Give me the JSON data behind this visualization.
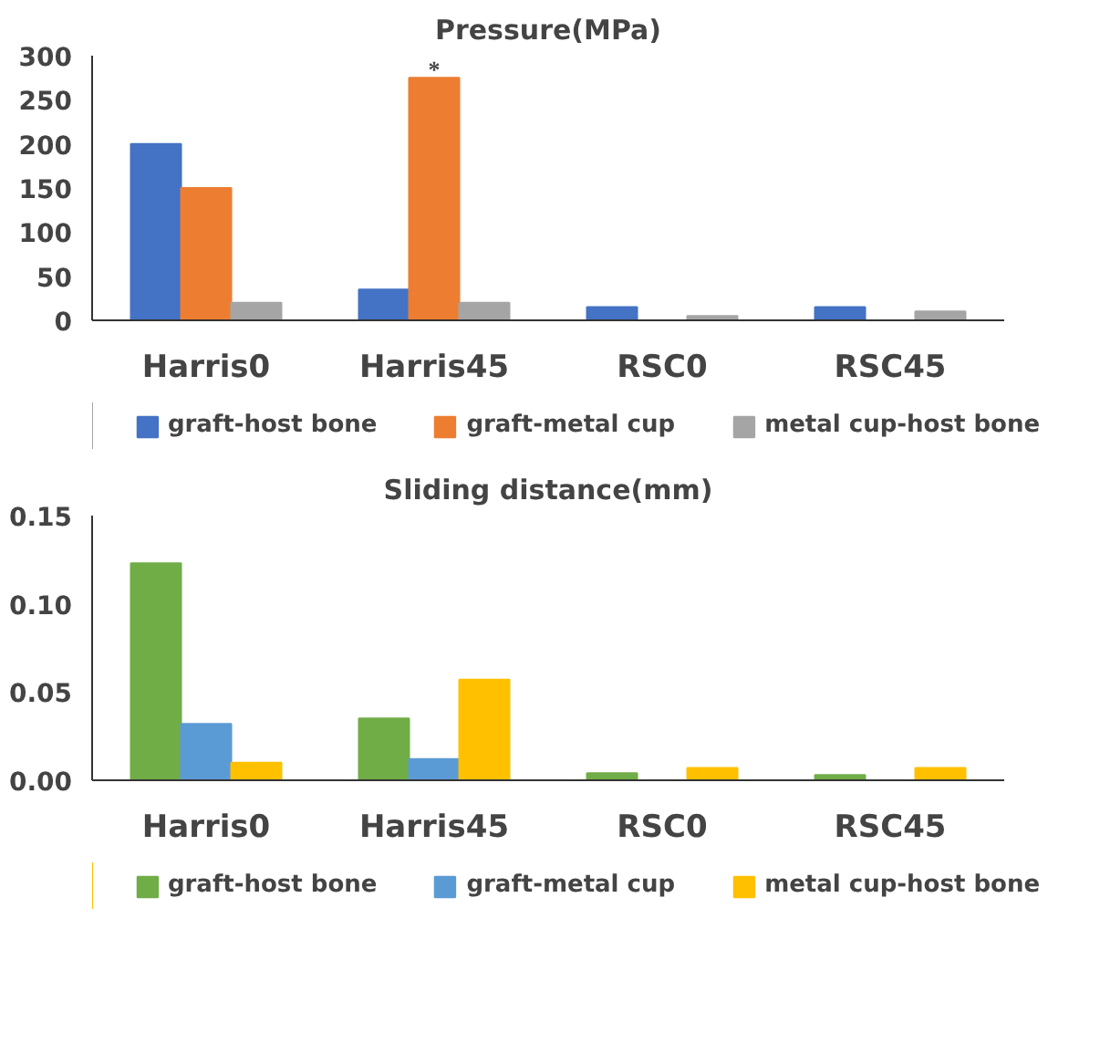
{
  "chart_data": [
    {
      "type": "bar",
      "title": "Pressure(MPa)",
      "categories": [
        "Harris0",
        "Harris45",
        "RSC0",
        "RSC45"
      ],
      "series": [
        {
          "name": "graft-host bone",
          "color": "#4472c4",
          "values": [
            200,
            35,
            15,
            15
          ]
        },
        {
          "name": "graft-metal cup",
          "color": "#ed7d31",
          "values": [
            150,
            275,
            0,
            0
          ]
        },
        {
          "name": "metal cup-host bone",
          "color": "#a5a5a5",
          "values": [
            20,
            20,
            5,
            10
          ]
        }
      ],
      "ylim": [
        0,
        300
      ],
      "yticks": [
        0,
        50,
        100,
        150,
        200,
        250,
        300
      ],
      "grid": false,
      "legend": "bottom",
      "annotations": [
        {
          "text": "*",
          "x": "Harris45",
          "y": 275
        }
      ]
    },
    {
      "type": "bar",
      "title": "Sliding distance(mm)",
      "categories": [
        "Harris0",
        "Harris45",
        "RSC0",
        "RSC45"
      ],
      "series": [
        {
          "name": "graft-host bone",
          "color": "#70ad47",
          "values": [
            0.123,
            0.035,
            0.004,
            0.003
          ]
        },
        {
          "name": "graft-metal cup",
          "color": "#5b9bd5",
          "values": [
            0.032,
            0.012,
            0,
            0
          ]
        },
        {
          "name": "metal cup-host bone",
          "color": "#ffc000",
          "values": [
            0.01,
            0.057,
            0.007,
            0.007
          ]
        }
      ],
      "ylim": [
        0,
        0.15
      ],
      "yticks": [
        {
          "value": 0,
          "label": "0.00"
        },
        {
          "value": 0.05,
          "label": "0.05"
        },
        {
          "value": 0.1,
          "label": "0.10"
        },
        {
          "value": 0.15,
          "label": "0.15"
        }
      ],
      "grid": false,
      "legend": "bottom"
    }
  ]
}
